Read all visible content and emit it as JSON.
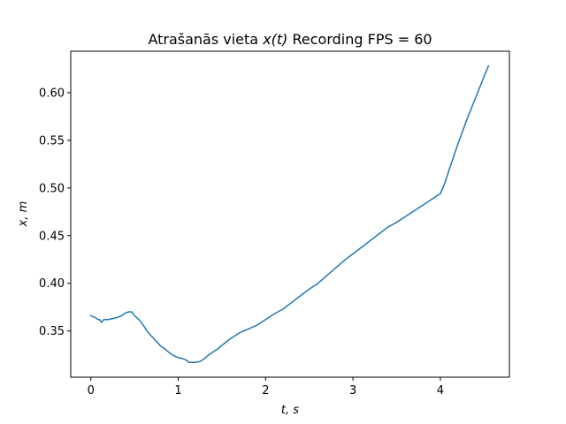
{
  "chart_data": {
    "type": "line",
    "title_prefix": "Atrašanās vieta ",
    "title_math": "x(t)",
    "title_suffix": " Recording FPS = 60",
    "xlabel": "t, s",
    "ylabel": "x, m",
    "xlim": [
      -0.23,
      4.79
    ],
    "ylim": [
      0.3015,
      0.6435
    ],
    "x_ticks": [
      0,
      1,
      2,
      3,
      4
    ],
    "x_tick_labels": [
      "0",
      "1",
      "2",
      "3",
      "4"
    ],
    "y_ticks": [
      0.35,
      0.4,
      0.45,
      0.5,
      0.55,
      0.6
    ],
    "y_tick_labels": [
      "0.35",
      "0.40",
      "0.45",
      "0.50",
      "0.55",
      "0.60"
    ],
    "grid": false,
    "legend": "none",
    "series": [
      {
        "color": "#1f77b4",
        "x": [
          0.0,
          0.05,
          0.08,
          0.1,
          0.12,
          0.15,
          0.2,
          0.25,
          0.3,
          0.35,
          0.4,
          0.43,
          0.47,
          0.5,
          0.55,
          0.6,
          0.65,
          0.7,
          0.75,
          0.8,
          0.85,
          0.9,
          0.95,
          1.0,
          1.05,
          1.1,
          1.12,
          1.2,
          1.25,
          1.3,
          1.35,
          1.4,
          1.45,
          1.5,
          1.6,
          1.7,
          1.8,
          1.9,
          2.0,
          2.1,
          2.2,
          2.3,
          2.4,
          2.5,
          2.6,
          2.7,
          2.8,
          2.9,
          3.0,
          3.1,
          3.2,
          3.3,
          3.4,
          3.5,
          3.6,
          3.7,
          3.8,
          3.9,
          3.98,
          4.0,
          4.05,
          4.1,
          4.2,
          4.3,
          4.4,
          4.5,
          4.55
        ],
        "y": [
          0.366,
          0.364,
          0.362,
          0.362,
          0.359,
          0.362,
          0.362,
          0.363,
          0.364,
          0.366,
          0.369,
          0.37,
          0.37,
          0.366,
          0.362,
          0.356,
          0.349,
          0.344,
          0.339,
          0.334,
          0.331,
          0.327,
          0.324,
          0.322,
          0.321,
          0.319,
          0.317,
          0.317,
          0.318,
          0.321,
          0.325,
          0.328,
          0.331,
          0.335,
          0.342,
          0.348,
          0.352,
          0.356,
          0.362,
          0.368,
          0.373,
          0.38,
          0.387,
          0.394,
          0.4,
          0.408,
          0.416,
          0.424,
          0.431,
          0.438,
          0.445,
          0.452,
          0.459,
          0.464,
          0.47,
          0.476,
          0.482,
          0.488,
          0.493,
          0.494,
          0.505,
          0.519,
          0.546,
          0.571,
          0.594,
          0.617,
          0.628
        ]
      }
    ]
  }
}
